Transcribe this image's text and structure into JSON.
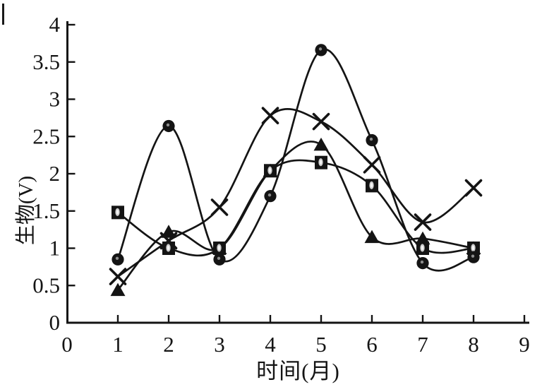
{
  "chart_data": {
    "type": "line",
    "title": "",
    "xlabel": "时间(月)",
    "ylabel": "生物(V)",
    "xlim": [
      0,
      9
    ],
    "ylim": [
      0,
      4
    ],
    "x_tick_labels": [
      "0",
      "1",
      "2",
      "3",
      "4",
      "5",
      "6",
      "7",
      "8",
      "9"
    ],
    "y_tick_labels": [
      "0",
      "0.5",
      "1",
      "1.5",
      "2",
      "2.5",
      "3",
      "3.5",
      "4"
    ],
    "grid": false,
    "legend": "none",
    "line_style": "smooth",
    "ink_color": "#141414",
    "background": "#ffffff",
    "x": [
      1,
      2,
      3,
      4,
      5,
      6,
      7,
      8
    ],
    "series": [
      {
        "name": "filled-circle",
        "marker": "circle",
        "values": [
          0.85,
          2.64,
          0.85,
          1.7,
          3.66,
          2.45,
          0.8,
          0.88
        ]
      },
      {
        "name": "filled-square",
        "marker": "square",
        "values": [
          1.48,
          1.0,
          1.0,
          2.04,
          2.15,
          1.84,
          1.0,
          1.0
        ]
      },
      {
        "name": "filled-triangle",
        "marker": "triangle",
        "values": [
          0.44,
          1.22,
          1.0,
          2.04,
          2.39,
          1.15,
          1.13,
          1.0
        ]
      },
      {
        "name": "x-cross",
        "marker": "x",
        "values": [
          0.62,
          1.1,
          1.55,
          2.78,
          2.7,
          2.12,
          1.35,
          1.81
        ]
      }
    ]
  }
}
